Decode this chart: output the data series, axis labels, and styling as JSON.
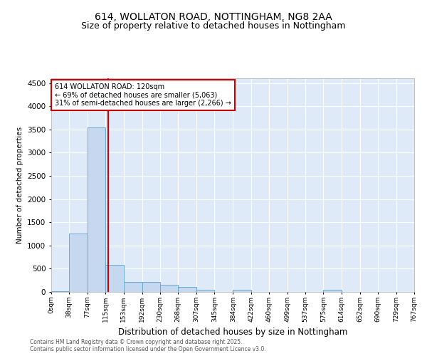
{
  "title": "614, WOLLATON ROAD, NOTTINGHAM, NG8 2AA",
  "subtitle": "Size of property relative to detached houses in Nottingham",
  "xlabel": "Distribution of detached houses by size in Nottingham",
  "ylabel": "Number of detached properties",
  "bins": [
    "0sqm",
    "38sqm",
    "77sqm",
    "115sqm",
    "153sqm",
    "192sqm",
    "230sqm",
    "268sqm",
    "307sqm",
    "345sqm",
    "384sqm",
    "422sqm",
    "460sqm",
    "499sqm",
    "537sqm",
    "575sqm",
    "614sqm",
    "652sqm",
    "690sqm",
    "729sqm",
    "767sqm"
  ],
  "bin_edges": [
    0,
    38,
    77,
    115,
    153,
    192,
    230,
    268,
    307,
    345,
    384,
    422,
    460,
    499,
    537,
    575,
    614,
    652,
    690,
    729,
    767
  ],
  "bar_values": [
    20,
    1260,
    3540,
    590,
    220,
    220,
    150,
    100,
    50,
    0,
    50,
    0,
    0,
    0,
    0,
    50,
    0,
    0,
    0,
    0
  ],
  "bar_color": "#c5d8f0",
  "bar_edge_color": "#6aaad4",
  "vline_x": 120,
  "vline_color": "#cc0000",
  "ylim": [
    0,
    4600
  ],
  "yticks": [
    0,
    500,
    1000,
    1500,
    2000,
    2500,
    3000,
    3500,
    4000,
    4500
  ],
  "annotation_title": "614 WOLLATON ROAD: 120sqm",
  "annotation_line1": "← 69% of detached houses are smaller (5,063)",
  "annotation_line2": "31% of semi-detached houses are larger (2,266) →",
  "annotation_box_color": "#cc0000",
  "bg_color": "#deeaf8",
  "grid_color": "#ffffff",
  "footer1": "Contains HM Land Registry data © Crown copyright and database right 2025.",
  "footer2": "Contains public sector information licensed under the Open Government Licence v3.0.",
  "title_fontsize": 10,
  "subtitle_fontsize": 9
}
